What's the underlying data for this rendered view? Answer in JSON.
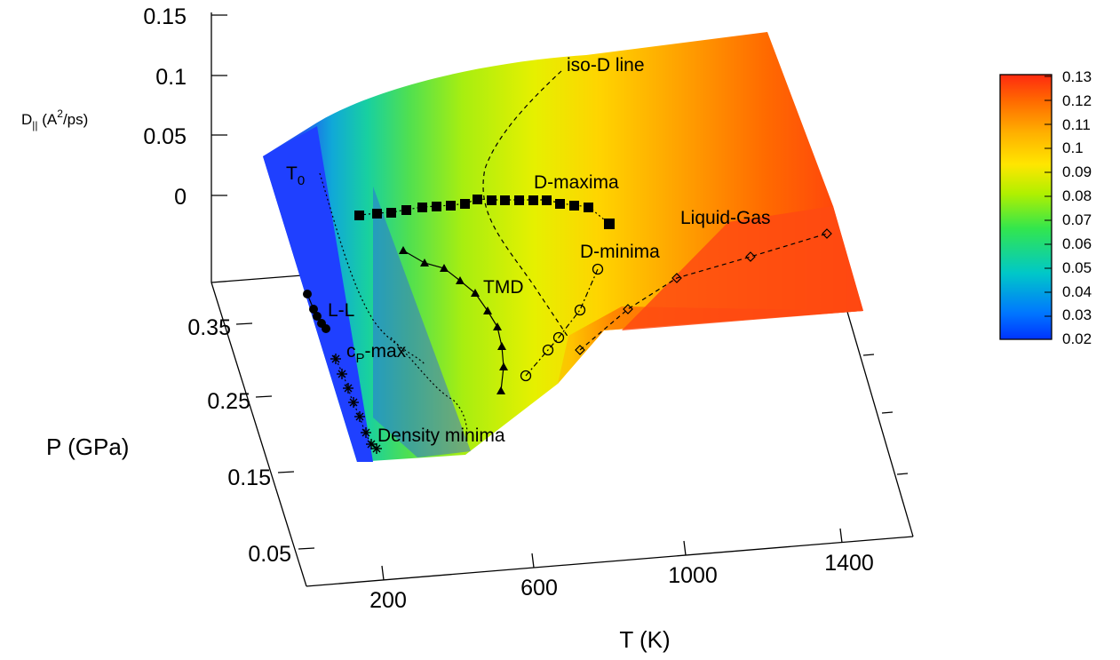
{
  "chart_data": {
    "type": "surface3d",
    "z_axis": {
      "label_main": "D",
      "label_sub": "||",
      "label_rest_pre": " (A",
      "label_sup": "2",
      "label_rest_post": "/ps)",
      "ticks": [
        "0.15",
        "0.1",
        "0.05",
        "0"
      ]
    },
    "p_axis": {
      "label": "P (GPa)",
      "ticks": [
        "0.35",
        "0.25",
        "0.15",
        "0.05"
      ]
    },
    "t_axis": {
      "label": "T (K)",
      "ticks": [
        "200",
        "600",
        "1000",
        "1400"
      ]
    },
    "colorbar": {
      "ticks": [
        "0.13",
        "0.12",
        "0.11",
        "0.1",
        "0.09",
        "0.08",
        "0.07",
        "0.06",
        "0.05",
        "0.04",
        "0.03",
        "0.02"
      ],
      "range": [
        0.02,
        0.13
      ]
    },
    "annotations": {
      "iso_d": "iso-D line",
      "t0_main": "T",
      "t0_sub": "0",
      "d_maxima": "D-maxima",
      "liquid_gas": "Liquid-Gas",
      "d_minima": "D-minima",
      "tmd": "TMD",
      "ll": "L-L",
      "cp_main": "c",
      "cp_sub": "P",
      "cp_rest": "-max",
      "density_minima": "Density minima"
    },
    "series": [
      {
        "name": "D-maxima",
        "marker": "filled-square",
        "line": "dotted"
      },
      {
        "name": "TMD",
        "marker": "filled-triangle",
        "line": "solid"
      },
      {
        "name": "D-minima",
        "marker": "open-circle",
        "line": "dash-dot"
      },
      {
        "name": "Liquid-Gas",
        "marker": "open-diamond",
        "line": "dashed"
      },
      {
        "name": "L-L",
        "marker": "filled-circle",
        "line": "solid"
      },
      {
        "name": "Density minima",
        "marker": "asterisk",
        "line": "dotted"
      },
      {
        "name": "iso-D line",
        "marker": "none",
        "line": "dashed"
      },
      {
        "name": "T0",
        "marker": "none",
        "line": "dotted"
      },
      {
        "name": "cP-max",
        "marker": "none",
        "line": "dotted"
      }
    ]
  }
}
